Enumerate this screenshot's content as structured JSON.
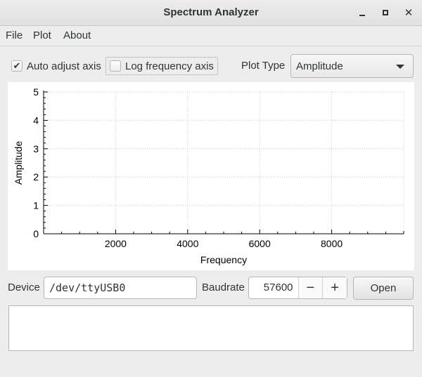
{
  "window": {
    "title": "Spectrum Analyzer"
  },
  "menu": {
    "items": [
      "File",
      "Plot",
      "About"
    ]
  },
  "controls": {
    "auto_adjust": {
      "label": "Auto adjust axis",
      "checked": true
    },
    "log_freq": {
      "label": "Log frequency axis",
      "checked": false
    },
    "plot_type_label": "Plot Type",
    "plot_type_value": "Amplitude"
  },
  "chart_data": {
    "type": "line",
    "series": [],
    "xlabel": "Frequency",
    "ylabel": "Amplitude",
    "xlim": [
      0,
      10000
    ],
    "ylim": [
      0,
      5
    ],
    "x_ticks": [
      "2000",
      "4000",
      "6000",
      "8000"
    ],
    "y_ticks": [
      "0",
      "1",
      "2",
      "3",
      "4",
      "5"
    ],
    "grid": true
  },
  "connection": {
    "device_label": "Device",
    "device_value": "/dev/ttyUSB0",
    "baud_label": "Baudrate",
    "baud_value": "57600",
    "minus": "−",
    "plus": "+",
    "open_label": "Open"
  },
  "log": {
    "text": ""
  }
}
